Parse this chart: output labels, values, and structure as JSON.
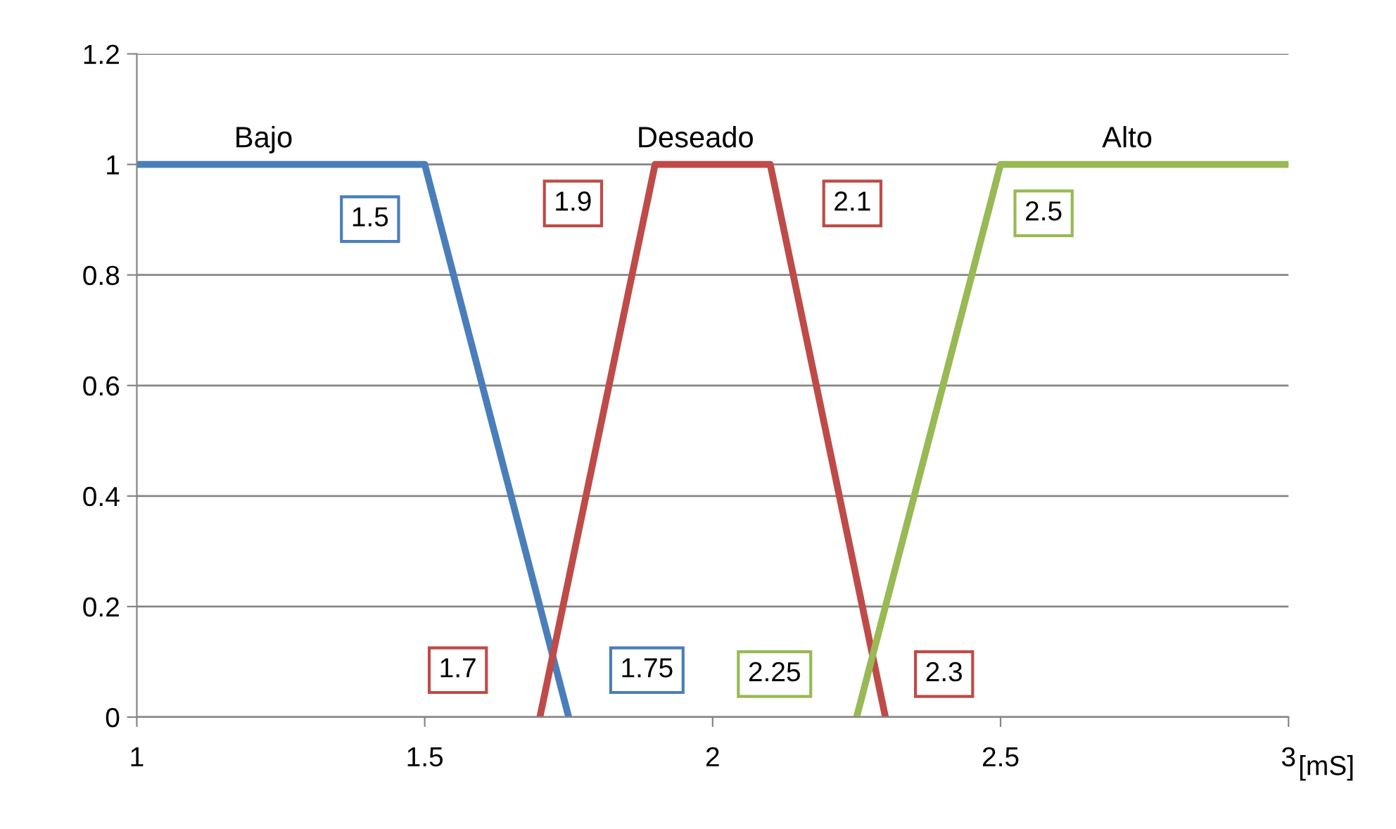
{
  "chart_data": {
    "type": "line",
    "xlabel": "[mS]",
    "series": [
      {
        "name": "Bajo",
        "color": "#4a7ebb",
        "x": [
          1,
          1.5,
          1.75
        ],
        "values": [
          1,
          1,
          0
        ]
      },
      {
        "name": "Deseado",
        "color": "#be4b48",
        "x": [
          1.7,
          1.9,
          2.1,
          2.3
        ],
        "values": [
          0,
          1,
          1,
          0
        ]
      },
      {
        "name": "Alto",
        "color": "#98b954",
        "x": [
          2.25,
          2.5,
          3
        ],
        "values": [
          0,
          1,
          1
        ]
      }
    ],
    "annotations": [
      {
        "text": "1.5",
        "x": 1.5,
        "y": 1
      },
      {
        "text": "1.9",
        "x": 1.9,
        "y": 1
      },
      {
        "text": "2.1",
        "x": 2.1,
        "y": 1
      },
      {
        "text": "2.5",
        "x": 2.5,
        "y": 1
      },
      {
        "text": "1.7",
        "x": 1.7,
        "y": 0
      },
      {
        "text": "1.75",
        "x": 1.75,
        "y": 0
      },
      {
        "text": "2.25",
        "x": 2.25,
        "y": 0
      },
      {
        "text": "2.3",
        "x": 2.3,
        "y": 0
      }
    ],
    "xlim": [
      1,
      3
    ],
    "xticks": [
      1,
      1.5,
      2,
      2.5,
      3
    ],
    "ylim": [
      0,
      1.2
    ],
    "yticks": [
      0,
      0.2,
      0.4,
      0.6,
      0.8,
      1,
      1.2
    ],
    "grid": "y",
    "marker": "none",
    "line_style": "solid",
    "legend": false
  }
}
